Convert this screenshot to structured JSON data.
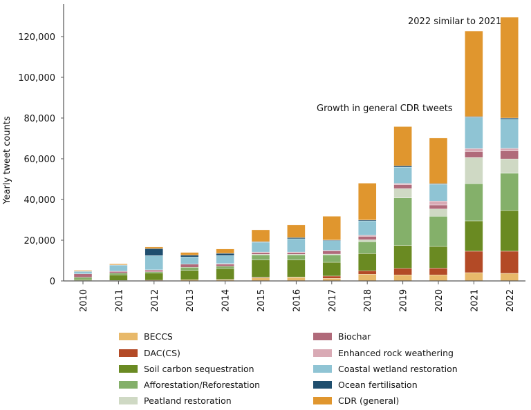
{
  "chart_data": {
    "type": "bar",
    "stacked": true,
    "title": "",
    "xlabel": "",
    "ylabel": "Yearly tweet counts",
    "ylim": [
      0,
      130000
    ],
    "yticks": [
      0,
      20000,
      40000,
      60000,
      80000,
      100000,
      120000
    ],
    "ytick_labels": [
      "0",
      "20,000",
      "40,000",
      "60,000",
      "80,000",
      "100,000",
      "120,000"
    ],
    "grid": false,
    "legend_position": "bottom",
    "categories": [
      "2010",
      "2011",
      "2012",
      "2013",
      "2014",
      "2015",
      "2016",
      "2017",
      "2018",
      "2019",
      "2020",
      "2021",
      "2022"
    ],
    "series": [
      {
        "name": "BECCS",
        "color": "#e8b96a",
        "values": [
          100,
          100,
          100,
          600,
          600,
          1500,
          1800,
          1250,
          3290,
          2950,
          2950,
          4070,
          3730
        ]
      },
      {
        "name": "DAC(CS)",
        "color": "#b34a26",
        "values": [
          100,
          150,
          250,
          0,
          100,
          300,
          100,
          1150,
          1690,
          3250,
          3350,
          10530,
          10870
        ]
      },
      {
        "name": "Soil carbon sequestration",
        "color": "#6a8a22",
        "values": [
          500,
          2700,
          3450,
          4600,
          5300,
          8500,
          8400,
          6750,
          8470,
          11200,
          10650,
          14900,
          20000
        ]
      },
      {
        "name": "Afforestation/Reforestation",
        "color": "#84b06a",
        "values": [
          1100,
          850,
          700,
          1500,
          1200,
          2500,
          2500,
          3650,
          5850,
          23400,
          14800,
          18300,
          18300
        ]
      },
      {
        "name": "Peatland restoration",
        "color": "#cfd9c4",
        "values": [
          0,
          0,
          0,
          0,
          0,
          300,
          300,
          400,
          900,
          4500,
          3600,
          12800,
          7000
        ]
      },
      {
        "name": "Biochar",
        "color": "#b06a7a",
        "values": [
          1700,
          850,
          850,
          1550,
          1050,
          900,
          900,
          1600,
          1700,
          1900,
          1950,
          3000,
          3900
        ]
      },
      {
        "name": "Enhanced rock weathering",
        "color": "#d9aab5",
        "values": [
          0,
          100,
          100,
          0,
          250,
          200,
          200,
          200,
          500,
          700,
          1900,
          1400,
          1300
        ]
      },
      {
        "name": "Coastal wetland restoration",
        "color": "#8fc4d4",
        "values": [
          1150,
          2950,
          6950,
          3500,
          3950,
          4800,
          6500,
          4800,
          7100,
          8000,
          8250,
          15300,
          14300
        ]
      },
      {
        "name": "Ocean fertilisation",
        "color": "#1f4e6e",
        "values": [
          100,
          200,
          3450,
          900,
          1100,
          300,
          600,
          300,
          400,
          600,
          350,
          400,
          600
        ]
      },
      {
        "name": "CDR (general)",
        "color": "#e0962e",
        "values": [
          450,
          500,
          800,
          1350,
          2150,
          5800,
          6200,
          11650,
          18100,
          19300,
          22400,
          42000,
          49500
        ]
      }
    ],
    "annotations": [
      {
        "text": "Growth in general CDR tweets",
        "near": "2019"
      },
      {
        "text": "2022 similar to 2021",
        "near": "2021"
      }
    ]
  }
}
